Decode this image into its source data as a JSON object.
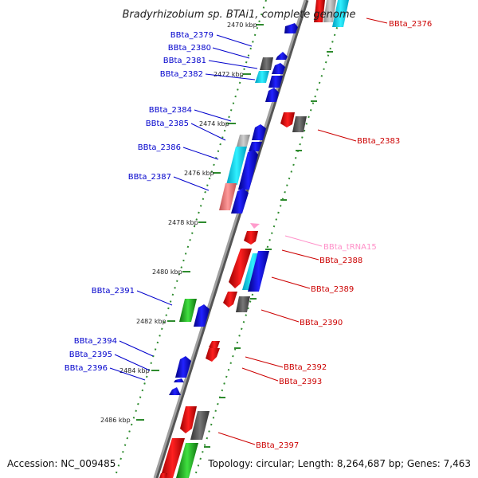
{
  "title": "Bradyrhizobium sp. BTAi1, complete genome",
  "footer": {
    "accession": "Accession: NC_009485",
    "topology": "Topology: circular; Length: 8,264,687 bp; Genes: 7,463"
  },
  "colors": {
    "backbone": "#8a8a8a",
    "forward_track_ticks": "#2e8b2e",
    "reverse_track_ticks": "#2e8b2e",
    "label_forward": "#0000cc",
    "label_reverse": "#cc0000",
    "label_trna": "#ff8fc8"
  },
  "kbp_ticks": [
    "2470 kbp",
    "2472 kbp",
    "2474 kbp",
    "2476 kbp",
    "2478 kbp",
    "2480 kbp",
    "2482 kbp",
    "2484 kbp",
    "2486 kbp"
  ],
  "gene_labels_forward": [
    {
      "name": "BBta_2379"
    },
    {
      "name": "BBta_2380"
    },
    {
      "name": "BBta_2381"
    },
    {
      "name": "BBta_2382"
    },
    {
      "name": "BBta_2384"
    },
    {
      "name": "BBta_2385"
    },
    {
      "name": "BBta_2386"
    },
    {
      "name": "BBta_2387"
    },
    {
      "name": "BBta_2391"
    },
    {
      "name": "BBta_2394"
    },
    {
      "name": "BBta_2395"
    },
    {
      "name": "BBta_2396"
    }
  ],
  "gene_labels_reverse": [
    {
      "name": "BBta_2376"
    },
    {
      "name": "BBta_2383"
    },
    {
      "name": "BBta_tRNA15"
    },
    {
      "name": "BBta_2388"
    },
    {
      "name": "BBta_2389"
    },
    {
      "name": "BBta_2390"
    },
    {
      "name": "BBta_2392"
    },
    {
      "name": "BBta_2393"
    },
    {
      "name": "BBta_2397"
    }
  ]
}
